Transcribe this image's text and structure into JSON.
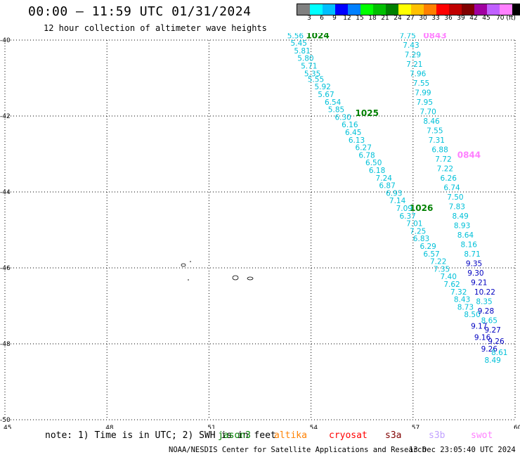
{
  "header": {
    "title": "00:00 – 11:59 UTC 01/31/2024",
    "subtitle": "12 hour collection of altimeter wave heights"
  },
  "colorbar": {
    "colors": [
      "#808080",
      "#00ffff",
      "#00bfff",
      "#0000ff",
      "#0080ff",
      "#00ff00",
      "#00c000",
      "#008000",
      "#ffff00",
      "#ffc000",
      "#ff8000",
      "#ff0000",
      "#c00000",
      "#800000",
      "#a000a0",
      "#c060ff",
      "#ff80ff",
      "#000000"
    ],
    "labels": [
      "3",
      "6",
      "9",
      "12",
      "15",
      "18",
      "21",
      "24",
      "27",
      "30",
      "33",
      "36",
      "39",
      "42",
      "45",
      "70 (ft)"
    ]
  },
  "chart_data": {
    "type": "scatter",
    "title": "00:00 – 11:59 UTC 01/31/2024",
    "xlabel": "",
    "ylabel": "",
    "xlim": [
      45,
      60
    ],
    "ylim": [
      -50,
      -40
    ],
    "x_ticks": [
      "45",
      "48",
      "51",
      "54",
      "57",
      "60"
    ],
    "y_ticks": [
      "-40",
      "-42",
      "-44",
      "-46",
      "-48",
      "-50"
    ],
    "grid": true,
    "track_color": "#00c0d8",
    "series": [
      {
        "name": "jason3",
        "color": "#00c0d8",
        "points": [
          {
            "x": 53.3,
            "y": -39.95,
            "v": "5.56"
          },
          {
            "x": 53.4,
            "y": -40.15,
            "v": "5.45"
          },
          {
            "x": 53.5,
            "y": -40.35,
            "v": "5.81"
          },
          {
            "x": 53.6,
            "y": -40.55,
            "v": "5.80"
          },
          {
            "x": 53.7,
            "y": -40.75,
            "v": "5.71"
          },
          {
            "x": 53.8,
            "y": -40.95,
            "v": "5.35"
          },
          {
            "x": 53.9,
            "y": -41.1,
            "v": "5.55"
          },
          {
            "x": 54.1,
            "y": -41.3,
            "v": "5.92"
          },
          {
            "x": 54.2,
            "y": -41.5,
            "v": "5.67"
          },
          {
            "x": 54.4,
            "y": -41.7,
            "v": "6.54"
          },
          {
            "x": 54.5,
            "y": -41.9,
            "v": "5.85"
          },
          {
            "x": 54.7,
            "y": -42.1,
            "v": "6.30"
          },
          {
            "x": 54.9,
            "y": -42.3,
            "v": "6.16"
          },
          {
            "x": 55.0,
            "y": -42.5,
            "v": "6.45"
          },
          {
            "x": 55.1,
            "y": -42.7,
            "v": "6.13"
          },
          {
            "x": 55.3,
            "y": -42.9,
            "v": "6.27"
          },
          {
            "x": 55.4,
            "y": -43.1,
            "v": "6.78"
          },
          {
            "x": 55.6,
            "y": -43.3,
            "v": "6.50"
          },
          {
            "x": 55.7,
            "y": -43.5,
            "v": "6.18"
          },
          {
            "x": 55.9,
            "y": -43.7,
            "v": "7.24"
          },
          {
            "x": 56.0,
            "y": -43.9,
            "v": "6.87"
          },
          {
            "x": 56.2,
            "y": -44.1,
            "v": "6.93"
          },
          {
            "x": 56.3,
            "y": -44.3,
            "v": "7.14"
          },
          {
            "x": 56.5,
            "y": -44.5,
            "v": "7.09"
          },
          {
            "x": 56.6,
            "y": -44.7,
            "v": "6.37"
          },
          {
            "x": 56.8,
            "y": -44.9,
            "v": "7.01"
          },
          {
            "x": 56.9,
            "y": -45.1,
            "v": "7.25"
          },
          {
            "x": 57.0,
            "y": -45.3,
            "v": "6.83"
          },
          {
            "x": 57.2,
            "y": -45.5,
            "v": "6.29"
          },
          {
            "x": 57.3,
            "y": -45.7,
            "v": "6.57"
          },
          {
            "x": 57.5,
            "y": -45.9,
            "v": "7.22"
          },
          {
            "x": 57.6,
            "y": -46.1,
            "v": "7.35"
          },
          {
            "x": 57.8,
            "y": -46.3,
            "v": "7.40"
          },
          {
            "x": 57.9,
            "y": -46.5,
            "v": "7.62"
          },
          {
            "x": 58.1,
            "y": -46.7,
            "v": "7.32"
          },
          {
            "x": 58.2,
            "y": -46.9,
            "v": "8.43"
          },
          {
            "x": 58.3,
            "y": -47.1,
            "v": "8.73"
          },
          {
            "x": 58.5,
            "y": -47.3,
            "v": "8.50"
          },
          {
            "x": 58.7,
            "y": -47.6,
            "v": "9.17"
          },
          {
            "x": 58.8,
            "y": -47.9,
            "v": "9.16"
          },
          {
            "x": 59.0,
            "y": -48.2,
            "v": "9.26"
          },
          {
            "x": 59.1,
            "y": -48.5,
            "v": "8.49"
          }
        ],
        "time_labels": [
          {
            "x": 53.85,
            "y": -39.95,
            "v": "1024"
          },
          {
            "x": 55.3,
            "y": -42.0,
            "v": "1025"
          },
          {
            "x": 56.9,
            "y": -44.5,
            "v": "1026"
          }
        ]
      },
      {
        "name": "swot",
        "color": "#00c0d8",
        "points": [
          {
            "x": 56.6,
            "y": -39.95,
            "v": "7.75"
          },
          {
            "x": 56.7,
            "y": -40.2,
            "v": "7.43"
          },
          {
            "x": 56.75,
            "y": -40.45,
            "v": "7.29"
          },
          {
            "x": 56.8,
            "y": -40.7,
            "v": "7.21"
          },
          {
            "x": 56.9,
            "y": -40.95,
            "v": "7.96"
          },
          {
            "x": 57.0,
            "y": -41.2,
            "v": "7.55"
          },
          {
            "x": 57.05,
            "y": -41.45,
            "v": "7.99"
          },
          {
            "x": 57.1,
            "y": -41.7,
            "v": "7.95"
          },
          {
            "x": 57.2,
            "y": -41.95,
            "v": "7.70"
          },
          {
            "x": 57.3,
            "y": -42.2,
            "v": "8.46"
          },
          {
            "x": 57.4,
            "y": -42.45,
            "v": "7.55"
          },
          {
            "x": 57.45,
            "y": -42.7,
            "v": "7.31"
          },
          {
            "x": 57.55,
            "y": -42.95,
            "v": "6.88"
          },
          {
            "x": 57.65,
            "y": -43.2,
            "v": "7.72"
          },
          {
            "x": 57.7,
            "y": -43.45,
            "v": "7.22"
          },
          {
            "x": 57.8,
            "y": -43.7,
            "v": "6.26"
          },
          {
            "x": 57.9,
            "y": -43.95,
            "v": "6.74"
          },
          {
            "x": 58.0,
            "y": -44.2,
            "v": "7.50"
          },
          {
            "x": 58.05,
            "y": -44.45,
            "v": "7.83"
          },
          {
            "x": 58.15,
            "y": -44.7,
            "v": "8.49"
          },
          {
            "x": 58.2,
            "y": -44.95,
            "v": "8.93"
          },
          {
            "x": 58.3,
            "y": -45.2,
            "v": "8.64"
          },
          {
            "x": 58.4,
            "y": -45.45,
            "v": "8.16"
          },
          {
            "x": 58.5,
            "y": -45.7,
            "v": "8.71"
          },
          {
            "x": 58.55,
            "y": -45.95,
            "v": "9.35"
          },
          {
            "x": 58.6,
            "y": -46.2,
            "v": "9.30"
          },
          {
            "x": 58.7,
            "y": -46.45,
            "v": "9.21"
          },
          {
            "x": 58.8,
            "y": -46.7,
            "v": "10.22"
          },
          {
            "x": 58.85,
            "y": -46.95,
            "v": "8.35"
          },
          {
            "x": 58.9,
            "y": -47.2,
            "v": "9.28"
          },
          {
            "x": 59.0,
            "y": -47.45,
            "v": "8.65"
          },
          {
            "x": 59.1,
            "y": -47.7,
            "v": "9.27"
          },
          {
            "x": 59.2,
            "y": -48.0,
            "v": "9.26"
          },
          {
            "x": 59.3,
            "y": -48.3,
            "v": "8.61"
          }
        ],
        "time_labels": [
          {
            "x": 57.3,
            "y": -39.95,
            "v": "0843"
          },
          {
            "x": 58.3,
            "y": -43.1,
            "v": "0844"
          }
        ]
      }
    ]
  },
  "footer": {
    "note": "note: 1) Time is in UTC; 2) SWH is in feet",
    "legend": [
      {
        "label": "jason3",
        "color": "#008000"
      },
      {
        "label": "altika",
        "color": "#ff8000"
      },
      {
        "label": "cryosat",
        "color": "#ff0000"
      },
      {
        "label": "s3a",
        "color": "#800000"
      },
      {
        "label": "s3b",
        "color": "#c0a0ff"
      },
      {
        "label": "swot",
        "color": "#ff80ff"
      }
    ],
    "credit": "NOAA/NESDIS Center for Satellite Applications and Research",
    "timestamp": "13 Dec 23:05:40 UTC 2024"
  }
}
